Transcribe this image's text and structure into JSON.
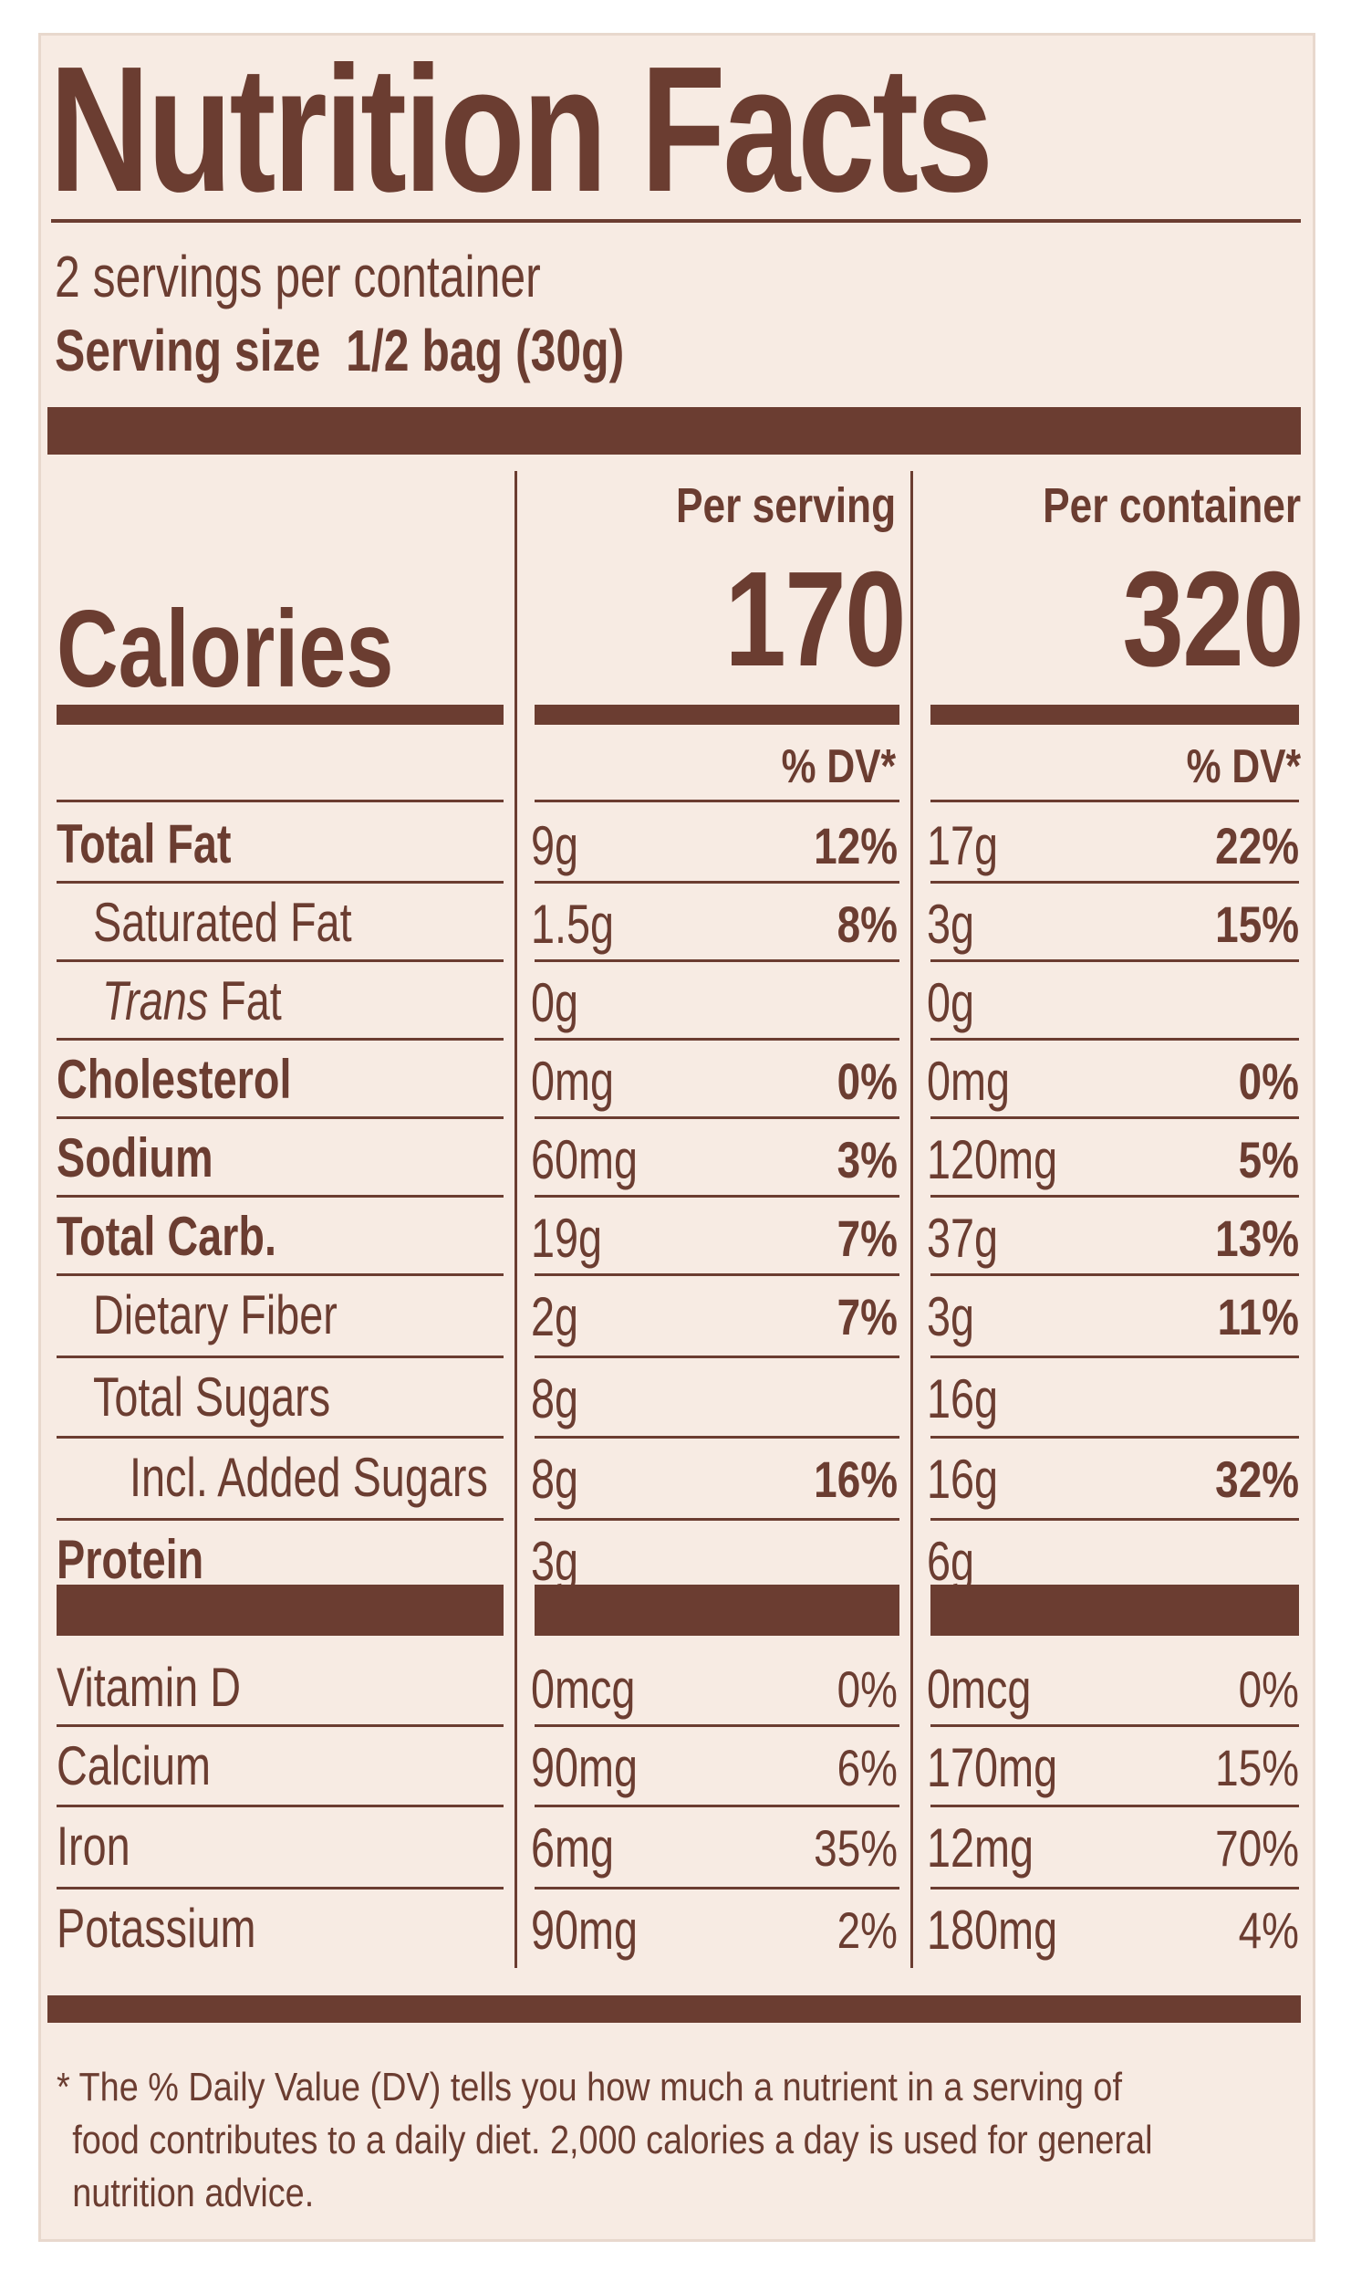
{
  "title": "Nutrition Facts",
  "servings_per_container": "2 servings per container",
  "serving_size_label": "Serving size",
  "serving_size_value": "1/2 bag (30g)",
  "calories_label": "Calories",
  "per_serving_label": "Per serving",
  "per_container_label": "Per container",
  "calories_per_serving": "170",
  "calories_per_container": "320",
  "dv_header": "% DV*",
  "nutrients": [
    {
      "name": "Total Fat",
      "serving_amount": "9g",
      "serving_dv": "12%",
      "container_amount": "17g",
      "container_dv": "22%"
    },
    {
      "name": "Saturated Fat",
      "serving_amount": "1.5g",
      "serving_dv": "8%",
      "container_amount": "3g",
      "container_dv": "15%"
    },
    {
      "name_italic": "Trans",
      "name_rest": " Fat",
      "serving_amount": "0g",
      "serving_dv": "",
      "container_amount": "0g",
      "container_dv": ""
    },
    {
      "name": "Cholesterol",
      "serving_amount": "0mg",
      "serving_dv": "0%",
      "container_amount": "0mg",
      "container_dv": "0%"
    },
    {
      "name": "Sodium",
      "serving_amount": "60mg",
      "serving_dv": "3%",
      "container_amount": "120mg",
      "container_dv": "5%"
    },
    {
      "name": "Total Carb.",
      "serving_amount": "19g",
      "serving_dv": "7%",
      "container_amount": "37g",
      "container_dv": "13%"
    },
    {
      "name": "Dietary Fiber",
      "serving_amount": "2g",
      "serving_dv": "7%",
      "container_amount": "3g",
      "container_dv": "11%"
    },
    {
      "name": "Total Sugars",
      "serving_amount": "8g",
      "serving_dv": "",
      "container_amount": "16g",
      "container_dv": ""
    },
    {
      "name": "Incl. Added Sugars",
      "serving_amount": "8g",
      "serving_dv": "16%",
      "container_amount": "16g",
      "container_dv": "32%"
    },
    {
      "name": "Protein",
      "serving_amount": "3g",
      "serving_dv": "",
      "container_amount": "6g",
      "container_dv": ""
    }
  ],
  "micronutrients": [
    {
      "name": "Vitamin D",
      "serving_amount": "0mcg",
      "serving_dv": "0%",
      "container_amount": "0mcg",
      "container_dv": "0%"
    },
    {
      "name": "Calcium",
      "serving_amount": "90mg",
      "serving_dv": "6%",
      "container_amount": "170mg",
      "container_dv": "15%"
    },
    {
      "name": "Iron",
      "serving_amount": "6mg",
      "serving_dv": "35%",
      "container_amount": "12mg",
      "container_dv": "70%"
    },
    {
      "name": "Potassium",
      "serving_amount": "90mg",
      "serving_dv": "2%",
      "container_amount": "180mg",
      "container_dv": "4%"
    }
  ],
  "footnote_lines": [
    "* The % Daily Value (DV) tells you how much a nutrient in a serving of",
    "food contributes to a daily diet. 2,000 calories a day is used for general",
    "nutrition advice."
  ]
}
